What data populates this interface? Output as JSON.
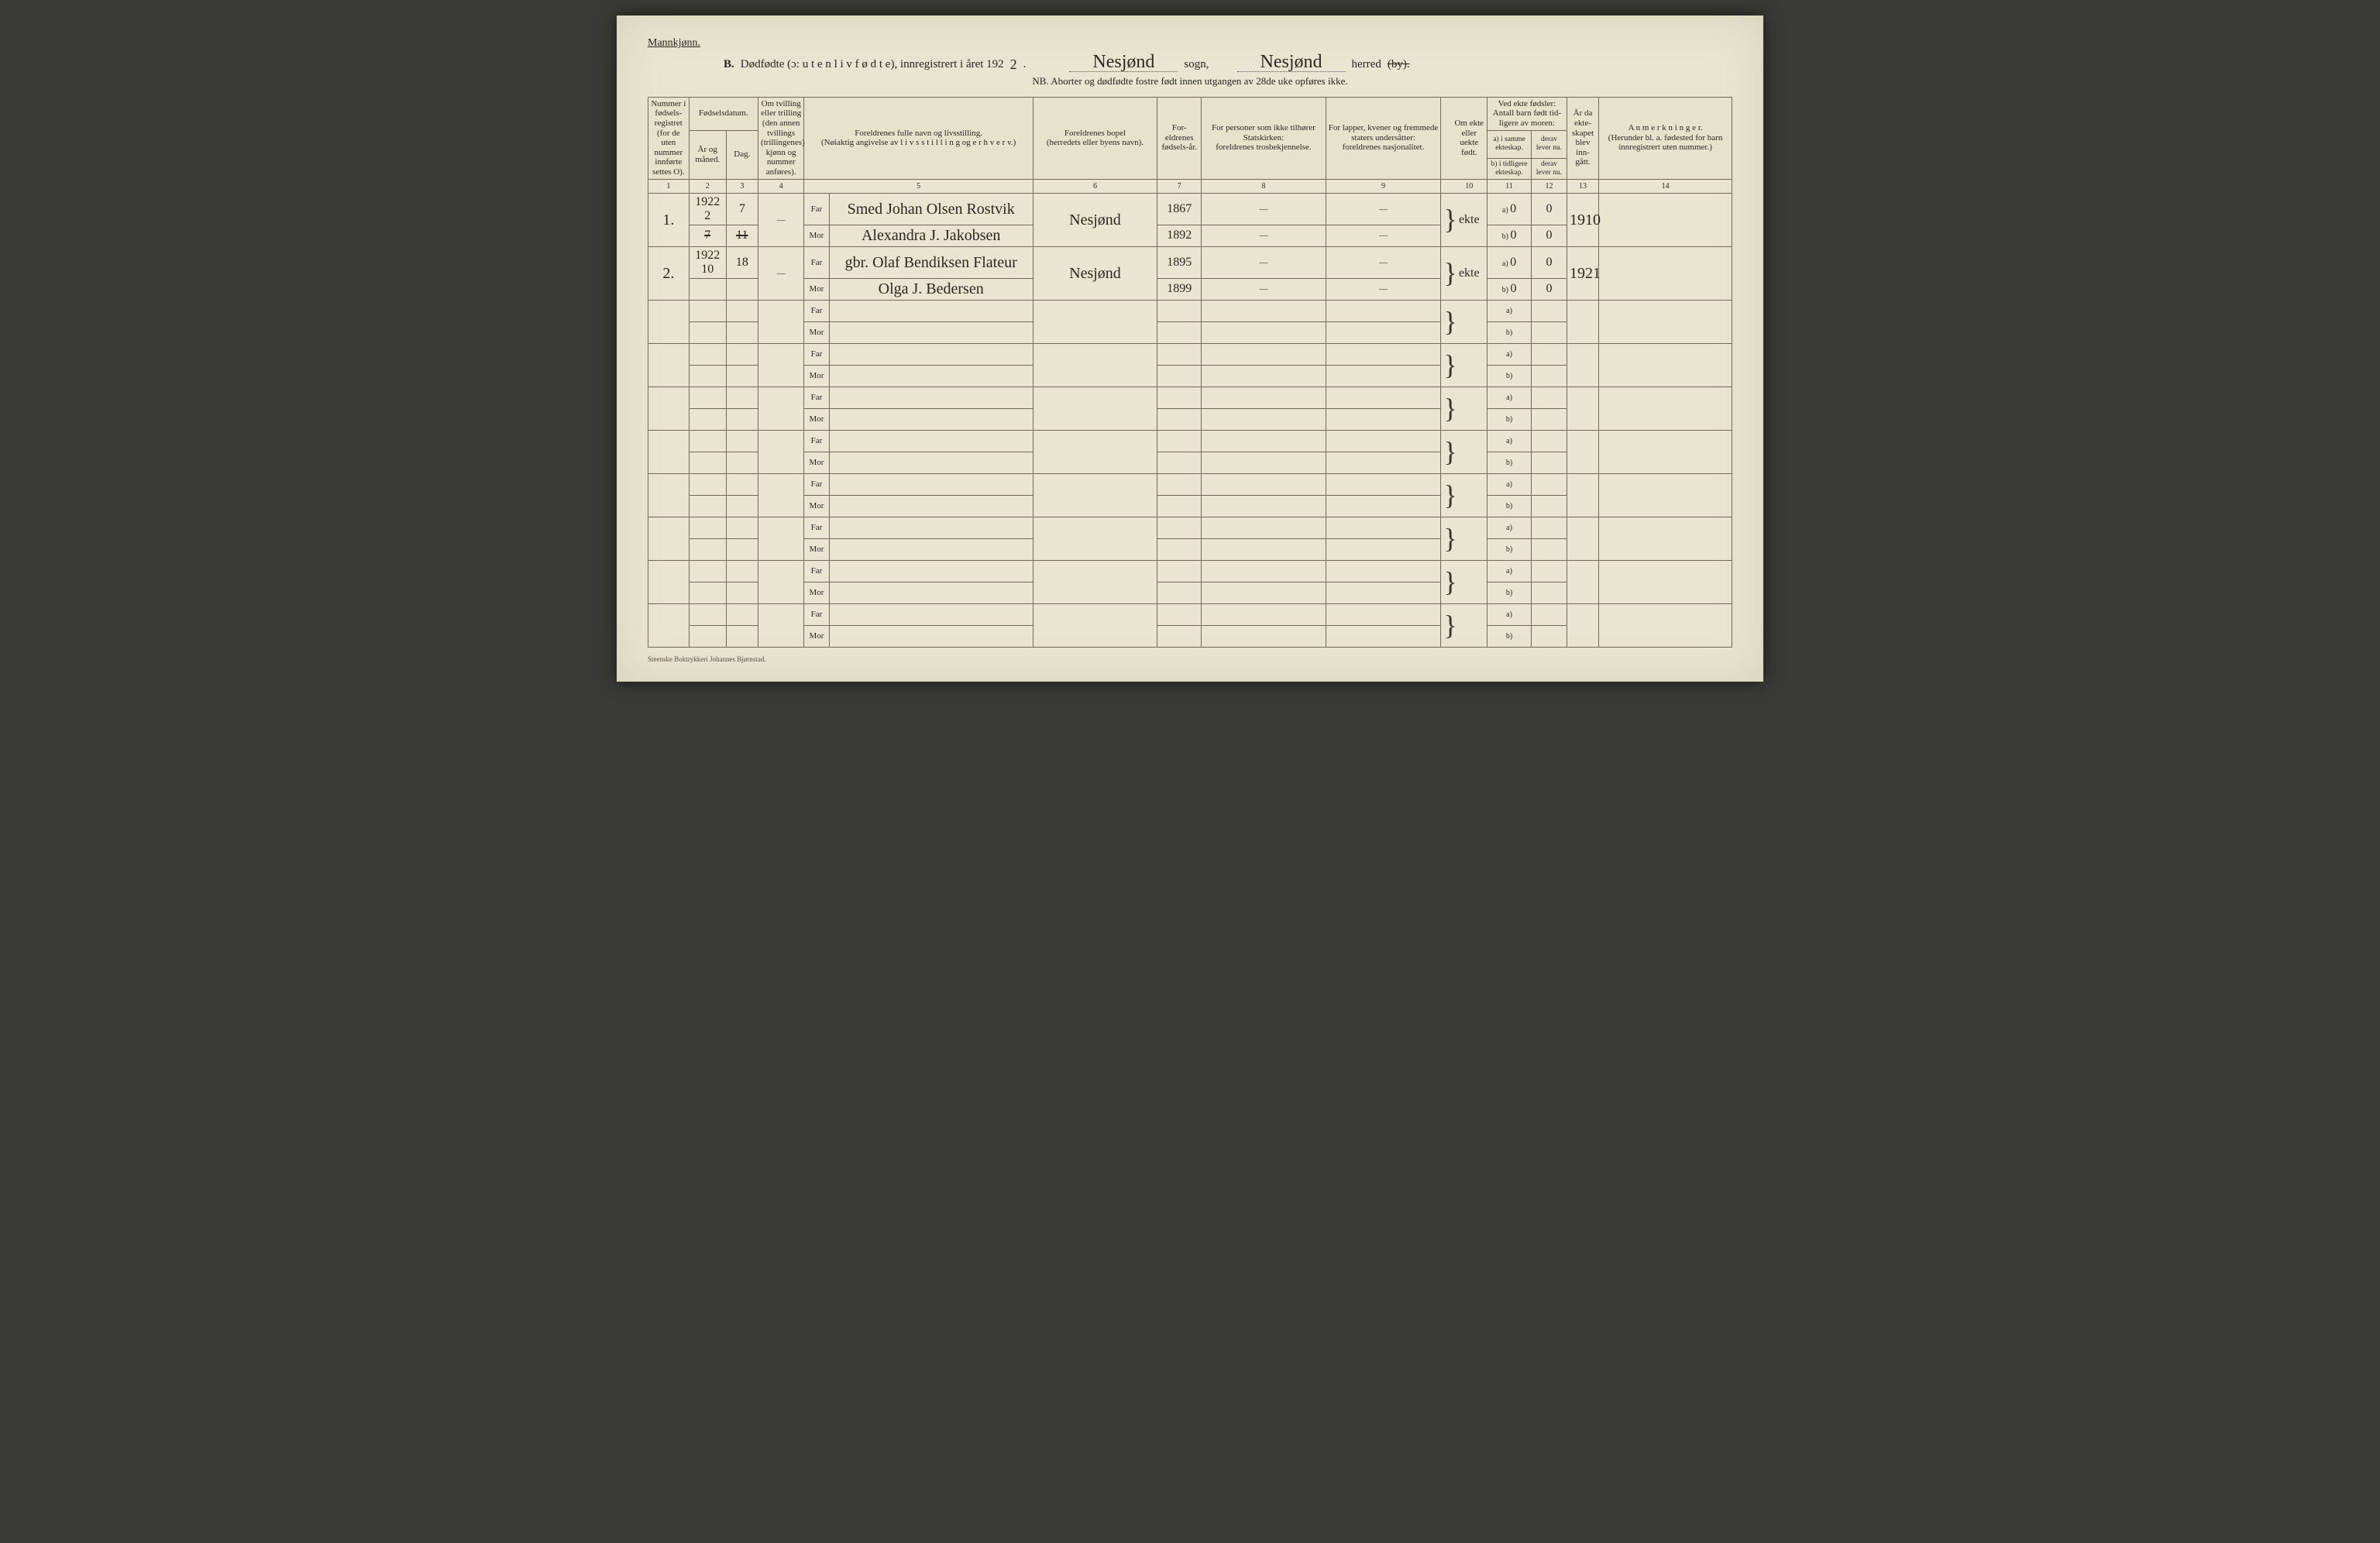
{
  "header": {
    "gender": "Mannkjønn.",
    "b": "B.",
    "titleMain": "Dødfødte (ɔ: u t e n  l i v  f ø d t e),  innregistrert i året 192",
    "yearSuffixHand": "2",
    "period": ".",
    "sognHand": "Nesjønd",
    "sognLabel": "sogn,",
    "herredHand": "Nesjønd",
    "herredLabel": "herred",
    "byStruck": "(by).",
    "nb": "NB.  Aborter og dødfødte fostre født innen utgangen av 28de uke opføres ikke."
  },
  "columns": {
    "c1": "Nummer i fødsels-registret (for de uten nummer innførte settes O).",
    "c2_top": "Fødselsdatum.",
    "c2a": "År og måned.",
    "c2b": "Dag.",
    "c4": "Om tvilling eller trilling (den annen tvillings (trillingenes) kjønn og nummer anføres).",
    "c5": "Foreldrenes fulle navn og livsstilling.\n(Nøiaktig angivelse av l i v s s t i l l i n g  og  e r h v e r v.)",
    "c6": "Foreldrenes bopel\n(herredets eller byens navn).",
    "c7": "For-eldrenes fødsels-år.",
    "c8": "For personer som ikke tilhører Statskirken:\nforeldrenes trosbekjennelse.",
    "c9": "For lapper, kvener og fremmede staters undersåtter:\nforeldrenes nasjonalitet.",
    "c10": "Om ekte eller uekte født.",
    "c11_top": "Ved ekte fødsler:\nAntall barn født tid-ligere av moren:",
    "c11a": "a) i samme ekteskap.",
    "c11b": "b) i tidligere ekteskap.",
    "c12a": "derav lever nu.",
    "c12b": "derav lever nu.",
    "c13": "År da ekte-skapet blev inn-gått.",
    "c14": "A n m e r k n i n g e r.\n(Herunder bl. a. fødested for barn innregistrert uten nummer.)",
    "nums": [
      "1",
      "2",
      "3",
      "4",
      "5",
      "6",
      "7",
      "8",
      "9",
      "10",
      "11",
      "12",
      "13",
      "14"
    ]
  },
  "labels": {
    "far": "Far",
    "mor": "Mor",
    "a": "a)",
    "b": "b)"
  },
  "entries": [
    {
      "num": "1.",
      "topYear": "1922",
      "month": "2",
      "monthStruck": "7",
      "day": "7",
      "dayStruck": "11",
      "twins": "—",
      "farName": "Smed Johan Olsen Rostvik",
      "morName": "Alexandra J. Jakobsen",
      "bopel": "Nesjønd",
      "farYear": "1867",
      "morYear": "1892",
      "c8": "—",
      "c9": "—",
      "ekte": "ekte",
      "a_same": "0",
      "a_lever": "0",
      "b_prev": "0",
      "b_lever": "0",
      "marriageYear": "1910"
    },
    {
      "num": "2.",
      "topYear": "1922",
      "month": "10",
      "day": "18",
      "twins": "—",
      "farName": "gbr. Olaf Bendiksen Flateur",
      "morName": "Olga J. Bedersen",
      "bopel": "Nesjønd",
      "farYear": "1895",
      "morYear": "1899",
      "c8": "—",
      "c9": "—",
      "ekte": "ekte",
      "a_same": "0",
      "a_lever": "0",
      "b_prev": "0",
      "b_lever": "0",
      "marriageYear": "1921"
    }
  ],
  "blankRowsCount": 8,
  "footer": "Steenske Boktrykkeri Johannes Bjørnstad."
}
